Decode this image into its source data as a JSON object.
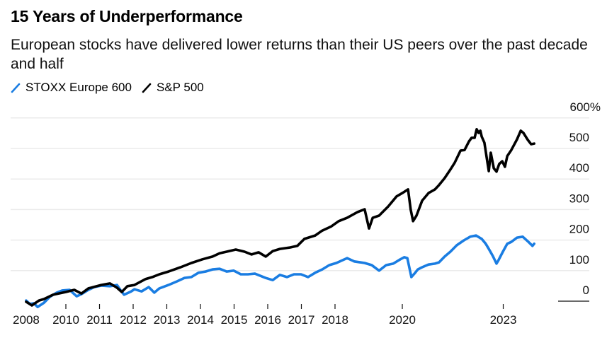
{
  "chart_data": {
    "type": "line",
    "title": "15 Years of Underperformance",
    "subtitle": "European stocks have delivered lower returns than their US peers over the past decade and half",
    "xlabel": "",
    "ylabel": "",
    "y_unit_suffix": "%",
    "ylim": [
      0,
      600
    ],
    "yticks": [
      {
        "value": 600,
        "label": "600%"
      },
      {
        "value": 500,
        "label": "500"
      },
      {
        "value": 400,
        "label": "400"
      },
      {
        "value": 300,
        "label": "300"
      },
      {
        "value": 200,
        "label": "200"
      },
      {
        "value": 100,
        "label": "100"
      },
      {
        "value": 0,
        "label": "0"
      }
    ],
    "xticks": [
      {
        "value": 2008.82,
        "label": "2008",
        "tick": false
      },
      {
        "value": 2010,
        "label": "2010",
        "tick": true
      },
      {
        "value": 2011,
        "label": "2011",
        "tick": true
      },
      {
        "value": 2012,
        "label": "2012",
        "tick": true
      },
      {
        "value": 2013,
        "label": "2013",
        "tick": true
      },
      {
        "value": 2014,
        "label": "2014",
        "tick": true
      },
      {
        "value": 2015,
        "label": "2015",
        "tick": true
      },
      {
        "value": 2016,
        "label": "2016",
        "tick": true
      },
      {
        "value": 2017,
        "label": "2017",
        "tick": true
      },
      {
        "value": 2018,
        "label": "2018",
        "tick": true
      },
      {
        "value": 2020,
        "label": "2020",
        "tick": true
      },
      {
        "value": 2023,
        "label": "2023",
        "tick": true
      }
    ],
    "grid": true,
    "legend_position": "top-left",
    "series": [
      {
        "name": "STOXX Europe 600",
        "color": "#1a7de2",
        "points": [
          [
            2008.82,
            2
          ],
          [
            2008.93,
            -9
          ],
          [
            2009.05,
            -7
          ],
          [
            2009.16,
            -19
          ],
          [
            2009.35,
            -5
          ],
          [
            2009.52,
            14
          ],
          [
            2009.73,
            28
          ],
          [
            2009.89,
            35
          ],
          [
            2010.11,
            37
          ],
          [
            2010.32,
            16
          ],
          [
            2010.46,
            23
          ],
          [
            2010.67,
            37
          ],
          [
            2010.84,
            46
          ],
          [
            2011.05,
            51
          ],
          [
            2011.31,
            49
          ],
          [
            2011.52,
            53
          ],
          [
            2011.62,
            37
          ],
          [
            2011.73,
            21
          ],
          [
            2011.94,
            32
          ],
          [
            2012.04,
            39
          ],
          [
            2012.25,
            32
          ],
          [
            2012.46,
            46
          ],
          [
            2012.63,
            28
          ],
          [
            2012.78,
            42
          ],
          [
            2013.05,
            53
          ],
          [
            2013.31,
            65
          ],
          [
            2013.52,
            76
          ],
          [
            2013.73,
            79
          ],
          [
            2013.94,
            93
          ],
          [
            2014.15,
            97
          ],
          [
            2014.36,
            104
          ],
          [
            2014.57,
            106
          ],
          [
            2014.78,
            97
          ],
          [
            2014.99,
            100
          ],
          [
            2015.2,
            88
          ],
          [
            2015.41,
            88
          ],
          [
            2015.62,
            90
          ],
          [
            2015.94,
            76
          ],
          [
            2016.15,
            69
          ],
          [
            2016.36,
            86
          ],
          [
            2016.57,
            79
          ],
          [
            2016.78,
            88
          ],
          [
            2016.99,
            88
          ],
          [
            2017.2,
            79
          ],
          [
            2017.41,
            93
          ],
          [
            2017.62,
            104
          ],
          [
            2017.83,
            118
          ],
          [
            2018.04,
            125
          ],
          [
            2018.36,
            141
          ],
          [
            2018.57,
            130
          ],
          [
            2018.88,
            125
          ],
          [
            2019.09,
            118
          ],
          [
            2019.31,
            100
          ],
          [
            2019.52,
            118
          ],
          [
            2019.73,
            123
          ],
          [
            2019.94,
            137
          ],
          [
            2020.06,
            144
          ],
          [
            2020.15,
            141
          ],
          [
            2020.27,
            79
          ],
          [
            2020.36,
            90
          ],
          [
            2020.46,
            104
          ],
          [
            2020.59,
            111
          ],
          [
            2020.78,
            120
          ],
          [
            2020.97,
            123
          ],
          [
            2021.09,
            127
          ],
          [
            2021.26,
            146
          ],
          [
            2021.43,
            162
          ],
          [
            2021.62,
            183
          ],
          [
            2021.83,
            199
          ],
          [
            2022.02,
            211
          ],
          [
            2022.19,
            215
          ],
          [
            2022.36,
            204
          ],
          [
            2022.48,
            188
          ],
          [
            2022.57,
            171
          ],
          [
            2022.69,
            148
          ],
          [
            2022.8,
            123
          ],
          [
            2022.86,
            134
          ],
          [
            2022.99,
            162
          ],
          [
            2023.12,
            188
          ],
          [
            2023.24,
            194
          ],
          [
            2023.41,
            208
          ],
          [
            2023.58,
            211
          ],
          [
            2023.75,
            194
          ],
          [
            2023.87,
            181
          ],
          [
            2023.92,
            188
          ]
        ]
      },
      {
        "name": "S&P 500",
        "color": "#000000",
        "points": [
          [
            2008.82,
            -2
          ],
          [
            2008.99,
            -14
          ],
          [
            2009.2,
            2
          ],
          [
            2009.35,
            7
          ],
          [
            2009.62,
            21
          ],
          [
            2010.0,
            30
          ],
          [
            2010.25,
            37
          ],
          [
            2010.46,
            25
          ],
          [
            2010.67,
            42
          ],
          [
            2011.05,
            53
          ],
          [
            2011.31,
            58
          ],
          [
            2011.52,
            44
          ],
          [
            2011.66,
            30
          ],
          [
            2011.83,
            49
          ],
          [
            2012.04,
            53
          ],
          [
            2012.36,
            72
          ],
          [
            2012.57,
            79
          ],
          [
            2012.78,
            88
          ],
          [
            2013.05,
            97
          ],
          [
            2013.41,
            111
          ],
          [
            2013.73,
            125
          ],
          [
            2014.06,
            137
          ],
          [
            2014.36,
            146
          ],
          [
            2014.57,
            157
          ],
          [
            2014.78,
            162
          ],
          [
            2015.05,
            169
          ],
          [
            2015.31,
            162
          ],
          [
            2015.52,
            153
          ],
          [
            2015.73,
            160
          ],
          [
            2015.94,
            146
          ],
          [
            2016.15,
            164
          ],
          [
            2016.36,
            171
          ],
          [
            2016.67,
            176
          ],
          [
            2016.88,
            181
          ],
          [
            2017.09,
            204
          ],
          [
            2017.41,
            215
          ],
          [
            2017.62,
            231
          ],
          [
            2017.89,
            245
          ],
          [
            2018.11,
            262
          ],
          [
            2018.36,
            273
          ],
          [
            2018.67,
            292
          ],
          [
            2018.88,
            301
          ],
          [
            2019.01,
            238
          ],
          [
            2019.12,
            273
          ],
          [
            2019.31,
            280
          ],
          [
            2019.58,
            310
          ],
          [
            2019.83,
            343
          ],
          [
            2020.0,
            354
          ],
          [
            2020.17,
            366
          ],
          [
            2020.25,
            299
          ],
          [
            2020.32,
            262
          ],
          [
            2020.42,
            280
          ],
          [
            2020.59,
            329
          ],
          [
            2020.78,
            354
          ],
          [
            2020.97,
            366
          ],
          [
            2021.09,
            380
          ],
          [
            2021.26,
            403
          ],
          [
            2021.43,
            431
          ],
          [
            2021.56,
            454
          ],
          [
            2021.73,
            493
          ],
          [
            2021.85,
            495
          ],
          [
            2021.98,
            523
          ],
          [
            2022.06,
            535
          ],
          [
            2022.15,
            535
          ],
          [
            2022.21,
            563
          ],
          [
            2022.27,
            551
          ],
          [
            2022.32,
            558
          ],
          [
            2022.36,
            539
          ],
          [
            2022.44,
            519
          ],
          [
            2022.53,
            454
          ],
          [
            2022.57,
            426
          ],
          [
            2022.63,
            486
          ],
          [
            2022.72,
            435
          ],
          [
            2022.8,
            424
          ],
          [
            2022.88,
            449
          ],
          [
            2022.97,
            458
          ],
          [
            2023.05,
            440
          ],
          [
            2023.12,
            475
          ],
          [
            2023.24,
            495
          ],
          [
            2023.41,
            530
          ],
          [
            2023.52,
            558
          ],
          [
            2023.6,
            551
          ],
          [
            2023.73,
            528
          ],
          [
            2023.83,
            514
          ],
          [
            2023.92,
            516
          ]
        ]
      }
    ]
  }
}
